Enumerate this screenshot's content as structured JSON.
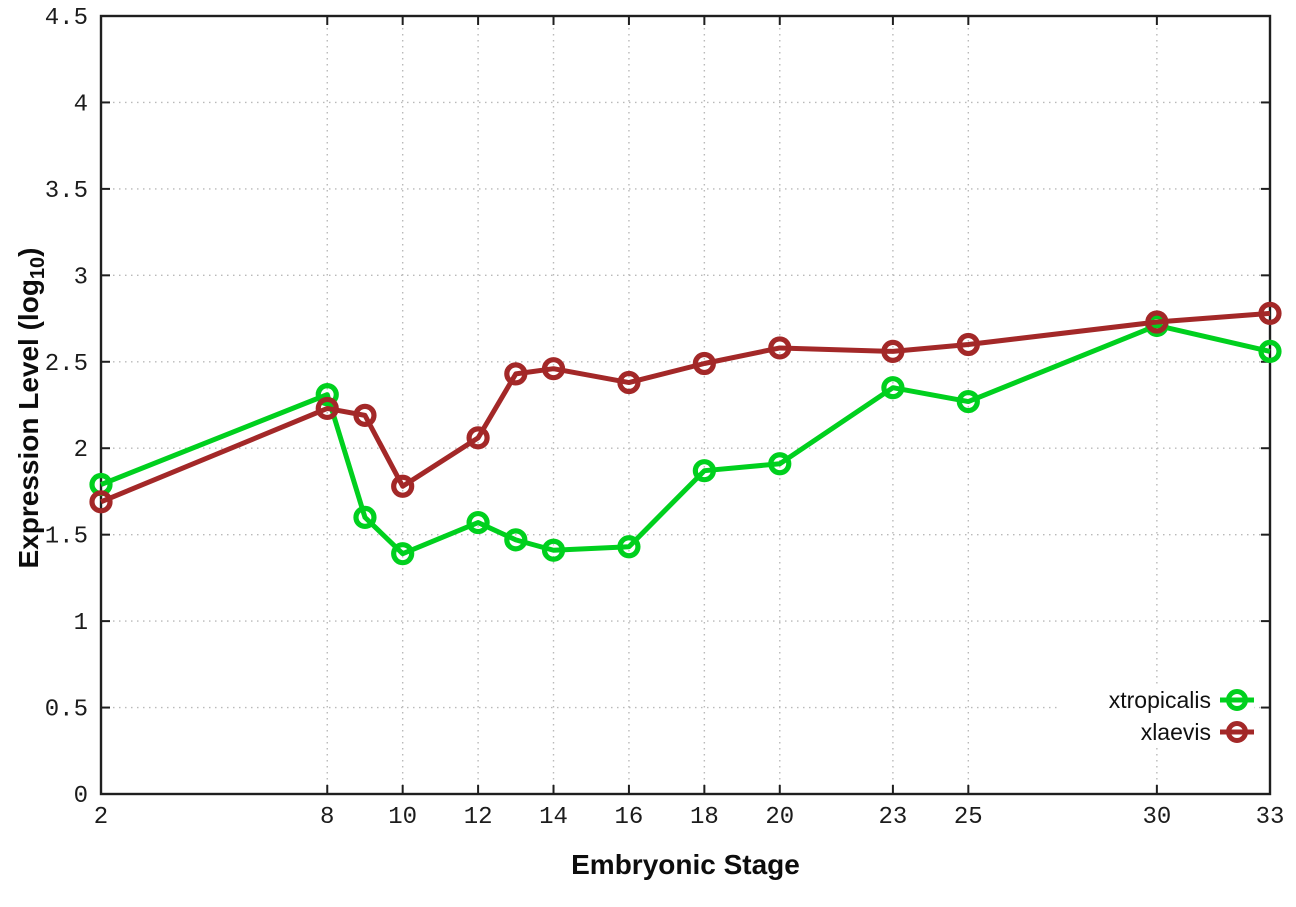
{
  "figure": {
    "background": "#ffffff",
    "axis_color": "#1f1f1f",
    "grid_color": "#b9b9b9",
    "tick_label_color": "#1c1c1c"
  },
  "chart_data": {
    "type": "line",
    "title": "",
    "xlabel": "Embryonic Stage",
    "ylabel": "Expression Level (log10)",
    "ylabel_parts": {
      "main": "Expression Level (log",
      "sub": "10",
      "suffix": ")"
    },
    "x": [
      2,
      8,
      9,
      10,
      12,
      13,
      14,
      16,
      18,
      20,
      23,
      25,
      30,
      33
    ],
    "xticks": [
      2,
      8,
      10,
      12,
      14,
      16,
      18,
      20,
      23,
      25,
      30,
      33
    ],
    "xlim": [
      2,
      33
    ],
    "yticks": [
      "0",
      "0.5",
      "1",
      "1.5",
      "2",
      "2.5",
      "3",
      "3.5",
      "4",
      "4.5"
    ],
    "ylim": [
      0,
      4.5
    ],
    "grid": true,
    "legend_position": "bottom-right",
    "marker": "open-circle",
    "series": [
      {
        "name": "xtropicalis",
        "color": "#00d01e",
        "values": [
          1.79,
          2.31,
          1.6,
          1.39,
          1.57,
          1.47,
          1.41,
          1.43,
          1.87,
          1.91,
          2.35,
          2.27,
          2.71,
          2.56
        ]
      },
      {
        "name": "xlaevis",
        "color": "#a32828",
        "values": [
          1.69,
          2.23,
          2.19,
          1.78,
          2.06,
          2.43,
          2.46,
          2.38,
          2.49,
          2.58,
          2.56,
          2.6,
          2.73,
          2.78
        ]
      }
    ]
  }
}
